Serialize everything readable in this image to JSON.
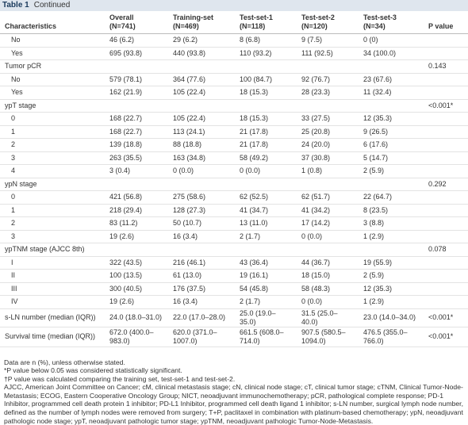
{
  "caption": {
    "label": "Table 1",
    "continued": "Continued"
  },
  "header": {
    "columns": [
      {
        "name": "Characteristics"
      },
      {
        "name": "Overall",
        "n": "(N=741)"
      },
      {
        "name": "Training-set",
        "n": "(N=469)"
      },
      {
        "name": "Test-set-1",
        "n": "(N=118)"
      },
      {
        "name": "Test-set-2",
        "n": "(N=120)"
      },
      {
        "name": "Test-set-3",
        "n": "(N=34)"
      },
      {
        "name": "P value"
      }
    ]
  },
  "rows": [
    {
      "label": "No",
      "indent": true,
      "values": [
        "46 (6.2)",
        "29 (6.2)",
        "8 (6.8)",
        "9 (7.5)",
        "0 (0)"
      ]
    },
    {
      "label": "Yes",
      "indent": true,
      "values": [
        "695 (93.8)",
        "440 (93.8)",
        "110 (93.2)",
        "111 (92.5)",
        "34 (100.0)"
      ]
    },
    {
      "label": "Tumor pCR",
      "p": "0.143"
    },
    {
      "label": "No",
      "indent": true,
      "values": [
        "579 (78.1)",
        "364 (77.6)",
        "100 (84.7)",
        "92 (76.7)",
        "23 (67.6)"
      ]
    },
    {
      "label": "Yes",
      "indent": true,
      "values": [
        "162 (21.9)",
        "105 (22.4)",
        "18 (15.3)",
        "28 (23.3)",
        "11 (32.4)"
      ]
    },
    {
      "label": "ypT stage",
      "p": "<0.001*"
    },
    {
      "label": "0",
      "indent": true,
      "values": [
        "168 (22.7)",
        "105 (22.4)",
        "18 (15.3)",
        "33 (27.5)",
        "12 (35.3)"
      ]
    },
    {
      "label": "1",
      "indent": true,
      "values": [
        "168 (22.7)",
        "113 (24.1)",
        "21 (17.8)",
        "25 (20.8)",
        "9 (26.5)"
      ]
    },
    {
      "label": "2",
      "indent": true,
      "values": [
        "139 (18.8)",
        "88 (18.8)",
        "21 (17.8)",
        "24 (20.0)",
        "6 (17.6)"
      ]
    },
    {
      "label": "3",
      "indent": true,
      "values": [
        "263 (35.5)",
        "163 (34.8)",
        "58 (49.2)",
        "37 (30.8)",
        "5 (14.7)"
      ]
    },
    {
      "label": "4",
      "indent": true,
      "values": [
        "3 (0.4)",
        "0 (0.0)",
        "0 (0.0)",
        "1 (0.8)",
        "2 (5.9)"
      ]
    },
    {
      "label": "ypN stage",
      "p": "0.292"
    },
    {
      "label": "0",
      "indent": true,
      "values": [
        "421 (56.8)",
        "275 (58.6)",
        "62 (52.5)",
        "62 (51.7)",
        "22 (64.7)"
      ]
    },
    {
      "label": "1",
      "indent": true,
      "values": [
        "218 (29.4)",
        "128 (27.3)",
        "41 (34.7)",
        "41 (34.2)",
        "8 (23.5)"
      ]
    },
    {
      "label": "2",
      "indent": true,
      "values": [
        "83 (11.2)",
        "50 (10.7)",
        "13 (11.0)",
        "17 (14.2)",
        "3 (8.8)"
      ]
    },
    {
      "label": "3",
      "indent": true,
      "values": [
        "19 (2.6)",
        "16 (3.4)",
        "2 (1.7)",
        "0 (0.0)",
        "1 (2.9)"
      ]
    },
    {
      "label": "ypTNM stage (AJCC 8th)",
      "p": "0.078"
    },
    {
      "label": "I",
      "indent": true,
      "values": [
        "322 (43.5)",
        "216 (46.1)",
        "43 (36.4)",
        "44 (36.7)",
        "19 (55.9)"
      ]
    },
    {
      "label": "II",
      "indent": true,
      "values": [
        "100 (13.5)",
        "61 (13.0)",
        "19 (16.1)",
        "18 (15.0)",
        "2 (5.9)"
      ]
    },
    {
      "label": "III",
      "indent": true,
      "values": [
        "300 (40.5)",
        "176 (37.5)",
        "54 (45.8)",
        "58 (48.3)",
        "12 (35.3)"
      ]
    },
    {
      "label": "IV",
      "indent": true,
      "values": [
        "19 (2.6)",
        "16 (3.4)",
        "2 (1.7)",
        "0 (0.0)",
        "1 (2.9)"
      ]
    },
    {
      "label": "s-LN number (median (IQR))",
      "values": [
        "24.0 (18.0–31.0)",
        "22.0 (17.0–28.0)",
        "25.0 (19.0–35.0)",
        "31.5 (25.0–40.0)",
        "23.0 (14.0–34.0)"
      ],
      "p": "<0.001*"
    },
    {
      "label": "Survival time (median (IQR))",
      "values": [
        "672.0 (400.0–983.0)",
        "620.0 (371.0–1007.0)",
        "661.5 (608.0–714.0)",
        "907.5 (580.5–1094.0)",
        "476.5 (355.0–766.0)"
      ],
      "p": "<0.001*"
    }
  ],
  "footnotes": [
    "Data are n (%), unless otherwise stated.",
    "*P value below 0.05 was considered statistically significant.",
    "†P value was calculated comparing the training set, test-set-1 and test-set-2.",
    "AJCC, American Joint Committee on Cancer; cM, clinical metastasis stage; cN, clinical node stage; cT, clinical tumor stage; cTNM, Clinical Tumor-Node-Metastasis; ECOG, Eastern Cooperative Oncology Group; NICT, neoadjuvant immunochemotherapy; pCR, pathological complete response; PD-1 Inhibitor, programmed cell death protein 1 inhibitor; PD-L1 Inhibitor, programmed cell death ligand 1 inhibitor; s-LN number, surgical lymph node number, defined as the number of lymph nodes were removed from surgery; T+P, paclitaxel in combination with platinum-based chemotherapy; ypN, neoadjuvant pathologic node stage; ypT, neoadjuvant pathologic tumor stage; ypTNM, neoadjuvant pathologic Tumor-Node-Metastasis."
  ]
}
